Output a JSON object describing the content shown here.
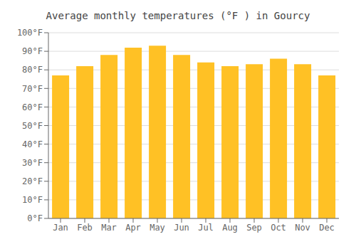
{
  "chart_data": {
    "type": "bar",
    "title": "Average monthly temperatures (°F ) in Gourcy",
    "categories": [
      "Jan",
      "Feb",
      "Mar",
      "Apr",
      "May",
      "Jun",
      "Jul",
      "Aug",
      "Sep",
      "Oct",
      "Nov",
      "Dec"
    ],
    "values": [
      77,
      82,
      88,
      92,
      93,
      88,
      84,
      82,
      83,
      86,
      83,
      77
    ],
    "color": "#FFC125",
    "ylim": [
      0,
      100
    ],
    "yticks": [
      {
        "value": 0,
        "label": "0°F"
      },
      {
        "value": 10,
        "label": "10°F"
      },
      {
        "value": 20,
        "label": "20°F"
      },
      {
        "value": 30,
        "label": "30°F"
      },
      {
        "value": 40,
        "label": "40°F"
      },
      {
        "value": 50,
        "label": "50°F"
      },
      {
        "value": 60,
        "label": "60°F"
      },
      {
        "value": 70,
        "label": "70°F"
      },
      {
        "value": 80,
        "label": "80°F"
      },
      {
        "value": 90,
        "label": "90°F"
      },
      {
        "value": 100,
        "label": "100°F"
      }
    ],
    "grid": true
  }
}
